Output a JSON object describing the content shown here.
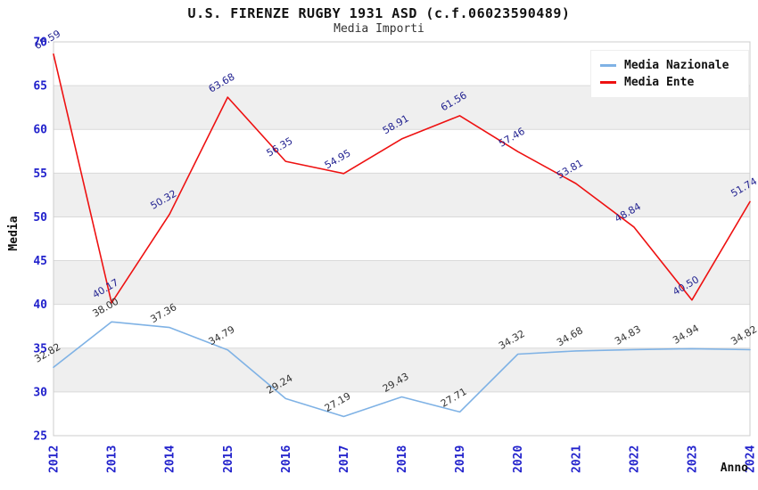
{
  "title": "U.S. FIRENZE RUGBY 1931 ASD (c.f.06023590489)",
  "subtitle": "Media Importi",
  "chart_data": {
    "type": "line",
    "x": [
      2012,
      2013,
      2014,
      2015,
      2016,
      2017,
      2018,
      2019,
      2020,
      2021,
      2022,
      2023,
      2024
    ],
    "series": [
      {
        "name": "Media Nazionale",
        "color": "#7fb2e5",
        "label_color": "#333333",
        "values": [
          32.82,
          38.0,
          37.36,
          34.79,
          29.24,
          27.19,
          29.43,
          27.71,
          34.32,
          34.68,
          34.83,
          34.94,
          34.82
        ]
      },
      {
        "name": "Media Ente",
        "color": "#ee1111",
        "label_color": "#1f1f8f",
        "values": [
          68.59,
          40.17,
          50.32,
          63.68,
          56.35,
          54.95,
          58.91,
          61.56,
          57.46,
          53.81,
          48.84,
          40.5,
          51.74
        ]
      }
    ],
    "xlabel": "Anno",
    "ylabel": "Media",
    "ylim": [
      25,
      70
    ],
    "ytick_step": 5,
    "grid": true,
    "legend_position": "top-right",
    "band_color": "#efefef",
    "grid_color": "#d9d9d9",
    "plot_border_color": "#cccccc",
    "axis_tick_color": "#2222cc",
    "axis_title_color": "#111111"
  }
}
